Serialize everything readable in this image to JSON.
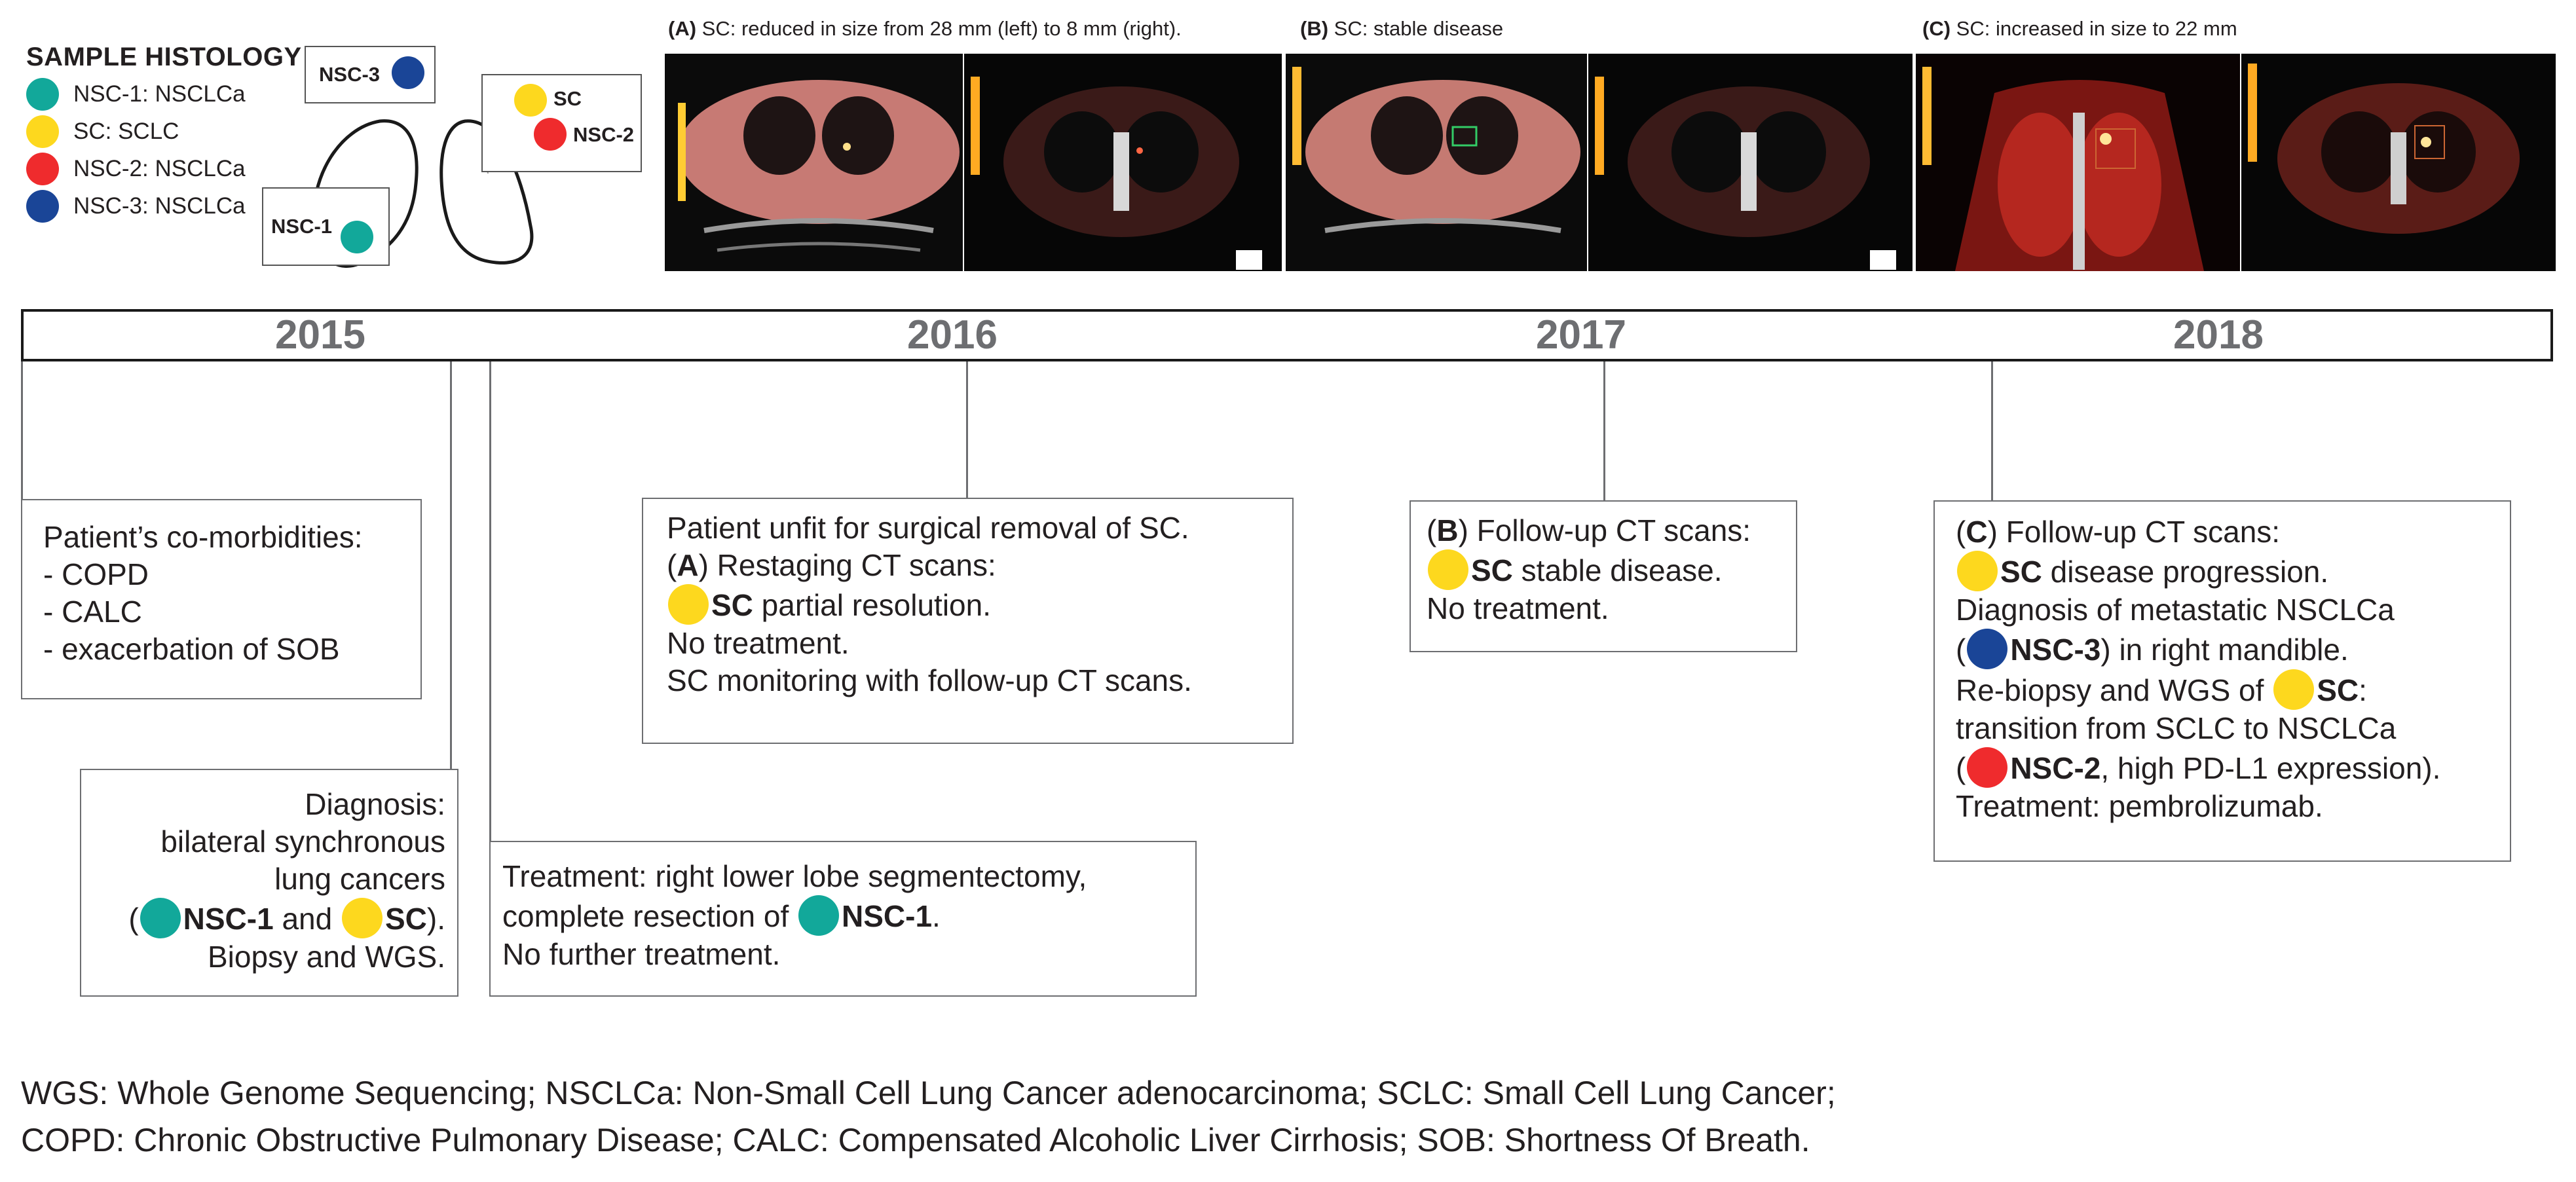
{
  "legend": {
    "title": "SAMPLE HISTOLOGY",
    "items": [
      {
        "label": "NSC-1: NSCLCa",
        "color": "#12a89a"
      },
      {
        "label": "SC: SCLC",
        "color": "#fdd81e"
      },
      {
        "label": "NSC-2: NSCLCa",
        "color": "#ef2b2d"
      },
      {
        "label": "NSC-3: NSCLCa",
        "color": "#1a4597"
      }
    ]
  },
  "lung_labels": {
    "nsc3": "NSC-3",
    "sc": "SC",
    "nsc2": "NSC-2",
    "nsc1": "NSC-1"
  },
  "scans": {
    "a": {
      "prefix": "(A)",
      "text": " SC: reduced in size from 28 mm (left) to 8 mm (right)."
    },
    "b": {
      "prefix": "(B)",
      "text": " SC: stable disease"
    },
    "c": {
      "prefix": "(C)",
      "text": " SC: increased in size to 22 mm"
    }
  },
  "years": [
    "2015",
    "2016",
    "2017",
    "2018"
  ],
  "events": {
    "comorbid": {
      "line1": "Patient’s co-morbidities:",
      "line2": "- COPD",
      "line3": "- CALC",
      "line4": "- exacerbation of SOB"
    },
    "diagnosis": {
      "line1": "Diagnosis:",
      "line2": "bilateral synchronous",
      "line3": "lung cancers",
      "open": "(",
      "nsc1": "NSC-1",
      "and": " and ",
      "sc": "SC",
      "close": ").",
      "line5": "Biopsy and WGS."
    },
    "treatment": {
      "line1": "Treatment: right lower lobe segmentectomy,",
      "line2a": "complete resection of ",
      "nsc1": "NSC-1",
      "line2b": ".",
      "line3": "No further treatment."
    },
    "y2016": {
      "line1": "Patient unfit for surgical removal of SC.",
      "open": "(",
      "a": "A",
      "close": ") Restaging CT scans:",
      "sc": "SC",
      "line3": " partial resolution.",
      "line4": "No treatment.",
      "line5": "SC monitoring with follow-up CT scans."
    },
    "y2017": {
      "open": "(",
      "b": "B",
      "close": ") Follow-up CT scans:",
      "sc": "SC",
      "line2": " stable disease.",
      "line3": "No treatment."
    },
    "y2018": {
      "open": "(",
      "c": "C",
      "close": ") Follow-up CT scans:",
      "sc": "SC",
      "line2": " disease progression.",
      "line3": "Diagnosis of metastatic NSCLCa",
      "p4open": "(",
      "nsc3": "NSC-3",
      "line4": ") in right mandible.",
      "line5": "Re-biopsy and WGS of ",
      "sc2": "SC",
      "line5b": ":",
      "line6": "transition from SCLC to NSCLCa",
      "p7open": "(",
      "nsc2": "NSC-2",
      "line7": ", high PD-L1 expression).",
      "line8": "Treatment: pembrolizumab."
    }
  },
  "footer": {
    "line1": "WGS: Whole Genome Sequencing; NSCLCa: Non-Small Cell Lung Cancer adenocarcinoma; SCLC: Small Cell Lung Cancer;",
    "line2": "COPD: Chronic Obstructive Pulmonary Disease; CALC: Compensated Alcoholic Liver Cirrhosis; SOB: Shortness Of Breath."
  }
}
